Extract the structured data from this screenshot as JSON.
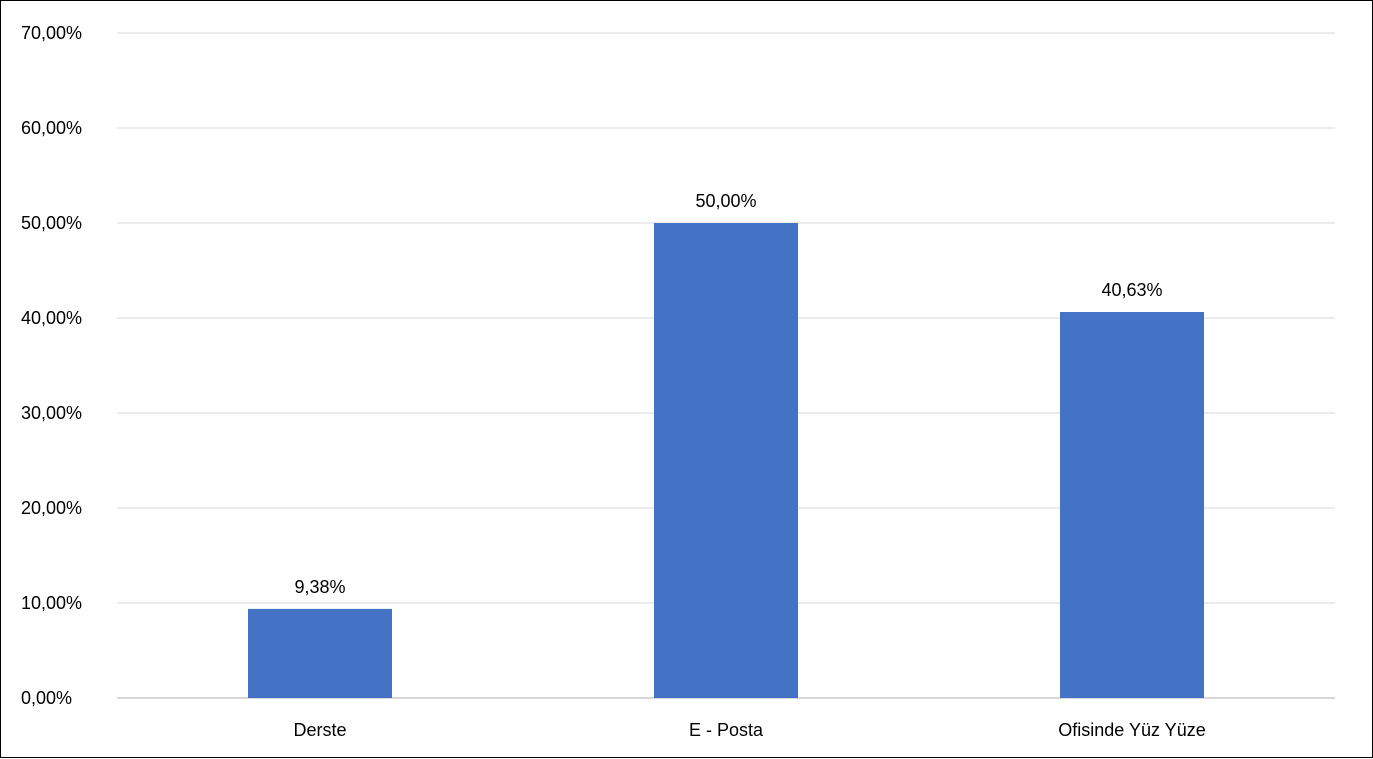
{
  "chart_data": {
    "type": "bar",
    "categories": [
      "Derste",
      "E - Posta",
      "Ofisinde Yüz Yüze"
    ],
    "values": [
      9.38,
      50.0,
      40.63
    ],
    "data_labels": [
      "9,38%",
      "50,00%",
      "40,63%"
    ],
    "ylim": [
      0,
      70
    ],
    "yticks": [
      0,
      10,
      20,
      30,
      40,
      50,
      60,
      70
    ],
    "ytick_labels": [
      "0,00%",
      "10,00%",
      "20,00%",
      "30,00%",
      "40,00%",
      "50,00%",
      "60,00%",
      "70,00%"
    ],
    "grid": true,
    "legend": "none",
    "bar_color": "#4472c4"
  }
}
